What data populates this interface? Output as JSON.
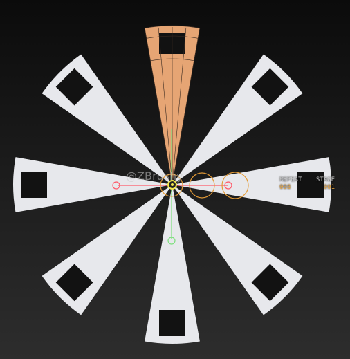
{
  "viewport": {
    "segment_count": 8,
    "selected_segment_index": 0,
    "colors": {
      "segment_fill": "#e7e8ec",
      "selected_fill": "#e6a574",
      "selected_wire": "#3a2a20",
      "gizmo_y": "#7ee07e",
      "gizmo_x": "#ff5a6a",
      "gizmo_ring": "#e39a36",
      "center": "#f2e64c"
    }
  },
  "readout": {
    "repeat_label": "REPEAT",
    "stage_label": "STAGE",
    "repeat_value": "008",
    "stage_value": "001"
  },
  "watermark": "@ZBrushy"
}
